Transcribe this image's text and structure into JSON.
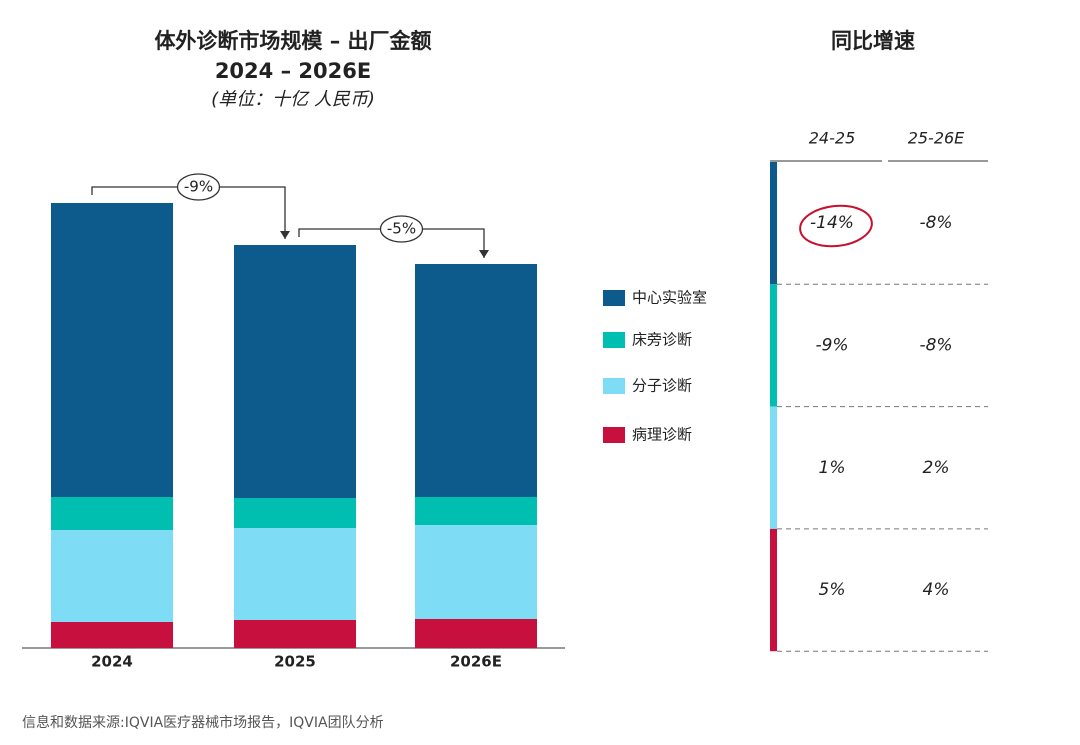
{
  "chart_data": {
    "type": "bar",
    "stacked": true,
    "title": "体外诊断市场规模 – 出厂金额",
    "subtitle": "2024 – 2026E",
    "unit": "(单位：十亿 人民币)",
    "categories": [
      "2024",
      "2025",
      "2026E"
    ],
    "series": [
      {
        "name": "病理诊断",
        "color": "#c8103e",
        "values": [
          26,
          28,
          29
        ]
      },
      {
        "name": "分子诊断",
        "color": "#7fdcf5",
        "values": [
          92,
          92,
          94
        ]
      },
      {
        "name": "床旁诊断",
        "color": "#00bfb0",
        "values": [
          33,
          30,
          28
        ]
      },
      {
        "name": "中心实验室",
        "color": "#0d5a8c",
        "values": [
          294,
          253,
          233
        ]
      }
    ],
    "annotations": [
      {
        "label": "-9%",
        "from": 0,
        "to": 1
      },
      {
        "label": "-5%",
        "from": 1,
        "to": 2
      }
    ]
  },
  "growth_table": {
    "title": "同比增速",
    "columns": [
      "24-25",
      "25-26E"
    ],
    "rows": [
      [
        "-14%",
        "-8%"
      ],
      [
        "-9%",
        "-8%"
      ],
      [
        "1%",
        "2%"
      ],
      [
        "5%",
        "4%"
      ]
    ]
  },
  "source": "信息和数据来源:IQVIA医疗器械市场报告，IQVIA团队分析"
}
